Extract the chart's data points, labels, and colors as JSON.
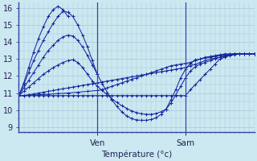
{
  "xlabel": "Température (°c)",
  "background_color": "#cce8f0",
  "grid_color": "#a8c8d8",
  "line_color": "#1428a0",
  "ylim": [
    8.7,
    16.3
  ],
  "y_ticks": [
    9,
    10,
    11,
    12,
    13,
    14,
    15,
    16
  ],
  "xlim": [
    0,
    48
  ],
  "ven_x": 16,
  "sam_x": 34,
  "ven_label": "Ven",
  "sam_label": "Sam",
  "series": [
    {
      "x": [
        0,
        1,
        2,
        3,
        4,
        5,
        6,
        7,
        8,
        9,
        10,
        11,
        12,
        13,
        14,
        15,
        16,
        17,
        18,
        19,
        20,
        21,
        22,
        23,
        24,
        25,
        26,
        27,
        28,
        29,
        30,
        31,
        32,
        33,
        34,
        35,
        36,
        37,
        38,
        39,
        40,
        41,
        42,
        43,
        44,
        45,
        46,
        47,
        48
      ],
      "y": [
        10.85,
        10.85,
        10.85,
        10.85,
        10.85,
        10.85,
        10.85,
        10.85,
        10.85,
        10.85,
        10.85,
        10.85,
        10.85,
        10.85,
        10.85,
        10.85,
        10.85,
        10.85,
        10.85,
        10.85,
        10.85,
        10.85,
        10.85,
        10.85,
        10.85,
        10.85,
        10.85,
        10.85,
        10.85,
        10.85,
        10.85,
        10.85,
        10.85,
        10.85,
        10.85,
        11.2,
        11.5,
        11.8,
        12.1,
        12.4,
        12.7,
        13.0,
        13.1,
        13.2,
        13.3,
        13.3,
        13.3,
        13.3,
        13.3
      ]
    },
    {
      "x": [
        0,
        1,
        2,
        3,
        4,
        5,
        6,
        7,
        8,
        9,
        10,
        11,
        12,
        13,
        14,
        15,
        16,
        17,
        18,
        19,
        20,
        21,
        22,
        23,
        24,
        25,
        26,
        27,
        28,
        29,
        30,
        31,
        32,
        33,
        34,
        35,
        36,
        37,
        38,
        39,
        40,
        41,
        42,
        43,
        44,
        45,
        46,
        47,
        48
      ],
      "y": [
        10.85,
        10.85,
        10.9,
        10.95,
        11.0,
        11.05,
        11.1,
        11.15,
        11.2,
        11.25,
        11.3,
        11.35,
        11.4,
        11.45,
        11.5,
        11.55,
        11.6,
        11.65,
        11.7,
        11.75,
        11.8,
        11.85,
        11.9,
        11.95,
        12.0,
        12.05,
        12.1,
        12.15,
        12.2,
        12.25,
        12.3,
        12.35,
        12.4,
        12.45,
        12.5,
        12.6,
        12.7,
        12.8,
        12.9,
        13.0,
        13.05,
        13.1,
        13.15,
        13.2,
        13.25,
        13.3,
        13.3,
        13.3,
        13.3
      ]
    },
    {
      "x": [
        0,
        2,
        4,
        6,
        8,
        10,
        12,
        14,
        16,
        17,
        18,
        19,
        20,
        21,
        22,
        23,
        24,
        25,
        26,
        27,
        28,
        29,
        30,
        31,
        32,
        33,
        34,
        35,
        36,
        37,
        38,
        39,
        40,
        41,
        42,
        43,
        44,
        45,
        46,
        47,
        48
      ],
      "y": [
        10.85,
        10.87,
        10.9,
        10.93,
        10.97,
        11.0,
        11.05,
        11.1,
        11.15,
        11.2,
        11.3,
        11.4,
        11.5,
        11.6,
        11.7,
        11.8,
        11.9,
        12.0,
        12.1,
        12.2,
        12.3,
        12.4,
        12.5,
        12.6,
        12.65,
        12.7,
        12.75,
        12.8,
        12.9,
        13.0,
        13.1,
        13.15,
        13.2,
        13.25,
        13.3,
        13.3,
        13.3,
        13.3,
        13.3,
        13.3,
        13.3
      ]
    },
    {
      "x": [
        0,
        1,
        2,
        3,
        4,
        5,
        6,
        7,
        8,
        9,
        10,
        11,
        12,
        13,
        14,
        15,
        16,
        17,
        18,
        19,
        20,
        21,
        22,
        23,
        24,
        25,
        26,
        27,
        28,
        29,
        30,
        31,
        32,
        33,
        34,
        35,
        36,
        37,
        38,
        39,
        40,
        41,
        42,
        43,
        44,
        45,
        46,
        47,
        48
      ],
      "y": [
        10.85,
        11.1,
        11.35,
        11.6,
        11.85,
        12.1,
        12.3,
        12.5,
        12.65,
        12.8,
        12.9,
        12.95,
        12.8,
        12.5,
        12.1,
        11.7,
        11.4,
        11.15,
        10.9,
        10.65,
        10.45,
        10.25,
        10.1,
        9.95,
        9.85,
        9.78,
        9.75,
        9.75,
        9.8,
        9.9,
        10.05,
        10.4,
        10.9,
        11.4,
        11.9,
        12.3,
        12.55,
        12.7,
        12.8,
        12.9,
        13.0,
        13.1,
        13.2,
        13.25,
        13.3,
        13.3,
        13.3,
        13.3,
        13.3
      ]
    },
    {
      "x": [
        0,
        1,
        2,
        3,
        4,
        5,
        6,
        7,
        8,
        9,
        10,
        11,
        12,
        13,
        14,
        15,
        16,
        17,
        18,
        19,
        20,
        21,
        22,
        23,
        24,
        25,
        26,
        27,
        28,
        29,
        30,
        31,
        32,
        33,
        34,
        35,
        36,
        37,
        38,
        39,
        40,
        41,
        42,
        43,
        44,
        45,
        46,
        47,
        48
      ],
      "y": [
        10.85,
        11.3,
        11.75,
        12.2,
        12.65,
        13.1,
        13.5,
        13.8,
        14.1,
        14.3,
        14.4,
        14.35,
        14.1,
        13.7,
        13.2,
        12.65,
        12.1,
        11.55,
        11.05,
        10.6,
        10.2,
        9.9,
        9.65,
        9.5,
        9.42,
        9.4,
        9.4,
        9.45,
        9.55,
        9.75,
        10.05,
        10.6,
        11.2,
        11.9,
        12.4,
        12.75,
        12.95,
        13.0,
        13.05,
        13.1,
        13.15,
        13.2,
        13.25,
        13.28,
        13.3,
        13.3,
        13.3,
        13.3,
        13.3
      ]
    },
    {
      "x": [
        0,
        1,
        2,
        3,
        4,
        5,
        6,
        7,
        8,
        9,
        10,
        11,
        12,
        13,
        14,
        15,
        16
      ],
      "y": [
        10.85,
        11.5,
        12.2,
        12.9,
        13.5,
        14.1,
        14.6,
        15.1,
        15.5,
        15.8,
        15.75,
        15.5,
        15.0,
        14.4,
        13.7,
        12.9,
        12.1
      ]
    },
    {
      "x": [
        0,
        1,
        2,
        3,
        4,
        5,
        6,
        7,
        8,
        9,
        10
      ],
      "y": [
        10.85,
        11.6,
        12.5,
        13.4,
        14.2,
        14.9,
        15.5,
        15.9,
        16.1,
        15.9,
        15.5
      ]
    }
  ]
}
